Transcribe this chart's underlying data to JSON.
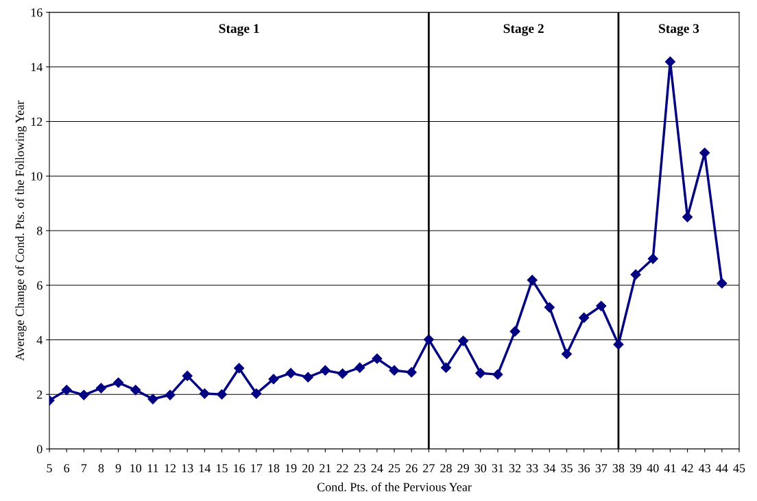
{
  "chart_data": {
    "type": "line",
    "xlabel": "Cond. Pts. of the Pervious Year",
    "ylabel": "Average Change of Cond. Pts. of the Following Year",
    "x": [
      5,
      6,
      7,
      8,
      9,
      10,
      11,
      12,
      13,
      14,
      15,
      16,
      17,
      18,
      19,
      20,
      21,
      22,
      23,
      24,
      25,
      26,
      27,
      28,
      29,
      30,
      31,
      32,
      33,
      34,
      35,
      36,
      37,
      38,
      39,
      40,
      41,
      42,
      43,
      44
    ],
    "series": [
      {
        "color": "#000080",
        "values": [
          1.78,
          2.16,
          1.98,
          2.23,
          2.43,
          2.16,
          1.83,
          1.98,
          2.68,
          2.03,
          2.0,
          2.96,
          2.03,
          2.56,
          2.78,
          2.63,
          2.88,
          2.76,
          2.98,
          3.31,
          2.88,
          2.81,
          4.01,
          2.98,
          3.96,
          2.78,
          2.73,
          4.31,
          6.19,
          5.19,
          3.48,
          4.81,
          5.24,
          3.83,
          6.39,
          6.97,
          14.19,
          8.5,
          10.85,
          6.07
        ]
      }
    ],
    "xlim": [
      5,
      45
    ],
    "xticks": [
      5,
      6,
      7,
      8,
      9,
      10,
      11,
      12,
      13,
      14,
      15,
      16,
      17,
      18,
      19,
      20,
      21,
      22,
      23,
      24,
      25,
      26,
      27,
      28,
      29,
      30,
      31,
      32,
      33,
      34,
      35,
      36,
      37,
      38,
      39,
      40,
      41,
      42,
      43,
      44,
      45
    ],
    "ylim": [
      0,
      16
    ],
    "yticks": [
      0,
      2,
      4,
      6,
      8,
      10,
      12,
      14,
      16
    ],
    "grid": "y",
    "marker": "diamond",
    "line_style": "solid",
    "ref_lines": [
      {
        "axis": "x",
        "value": 27,
        "color": "#000000"
      },
      {
        "axis": "x",
        "value": 38,
        "color": "#000000"
      }
    ],
    "annotations": [
      "Stage 1",
      "Stage 2",
      "Stage 3"
    ]
  }
}
